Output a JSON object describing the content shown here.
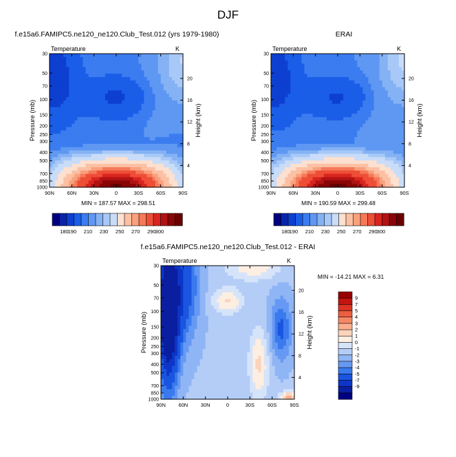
{
  "figure": {
    "title": "DJF",
    "panel_titles": [
      "f.e15a6.FAMIPC5.ne120_ne120.Club_Test.012 (yrs 1979-1980)",
      "ERAI",
      "f.e15a6.FAMIPC5.ne120_ne120.Club_Test.012 - ERAI"
    ],
    "field_label": "Temperature",
    "units": "K",
    "stats": [
      "MIN = 187.57  MAX = 298.51",
      "MIN = 190.59  MAX = 299.48",
      "MIN = -14.21  MAX =   6.31"
    ]
  },
  "colors": {
    "full_levels": [
      "#000080",
      "#0a24a8",
      "#0d3fd0",
      "#1a5ee8",
      "#3b7cf0",
      "#5e98f2",
      "#85b2f4",
      "#a8c9f8",
      "#c9dcf8",
      "#fde0cf",
      "#fcc0a4",
      "#f9a07c",
      "#f5795a",
      "#ee4e36",
      "#d9241f",
      "#b01313",
      "#8a0505",
      "#6a0000"
    ],
    "diff_levels": [
      "#000080",
      "#0a1ea0",
      "#0d36c8",
      "#1a55e0",
      "#3a7aee",
      "#6699f3",
      "#8fb5f5",
      "#b4cdf7",
      "#d6e4fa",
      "#fdeee2",
      "#fcd3bb",
      "#faae8d",
      "#f48864",
      "#ec5e3f",
      "#dc3323",
      "#c21510",
      "#990000"
    ]
  },
  "chart_data": [
    {
      "type": "heatmap",
      "title": "f.e15a6.FAMIPC5.ne120_ne120.Club_Test.012 (yrs 1979-1980)",
      "ylabel": "Pressure (mb)",
      "y2label": "Height (km)",
      "x_ticks": [
        "90N",
        "60N",
        "30N",
        "0",
        "30S",
        "60S",
        "90S"
      ],
      "y_ticks": [
        30,
        50,
        70,
        100,
        150,
        200,
        250,
        300,
        400,
        500,
        700,
        850,
        1000
      ],
      "y2_ticks": [
        20,
        16,
        12,
        8,
        4
      ],
      "ylim": [
        30,
        1000
      ],
      "min": 187.57,
      "max": 298.51,
      "colorbar_labels": [
        "180",
        "190",
        "210",
        "230",
        "250",
        "270",
        "290",
        "300"
      ]
    },
    {
      "type": "heatmap",
      "title": "ERAI",
      "ylabel": "Pressure (mb)",
      "y2label": "Height (km)",
      "x_ticks": [
        "90N",
        "60N",
        "30N",
        "0",
        "30S",
        "60S",
        "90S"
      ],
      "y_ticks": [
        30,
        50,
        70,
        100,
        150,
        200,
        250,
        300,
        400,
        500,
        700,
        850,
        1000
      ],
      "y2_ticks": [
        20,
        16,
        12,
        8,
        4
      ],
      "ylim": [
        30,
        1000
      ],
      "min": 190.59,
      "max": 299.48,
      "colorbar_labels": [
        "180",
        "190",
        "210",
        "230",
        "250",
        "270",
        "290",
        "300"
      ]
    },
    {
      "type": "heatmap",
      "title": "f.e15a6.FAMIPC5.ne120_ne120.Club_Test.012 - ERAI",
      "ylabel": "Pressure (mb)",
      "y2label": "Height (km)",
      "x_ticks": [
        "90N",
        "60N",
        "30N",
        "0",
        "30S",
        "60S",
        "90S"
      ],
      "y_ticks": [
        30,
        50,
        70,
        100,
        150,
        200,
        250,
        300,
        400,
        500,
        700,
        850,
        1000
      ],
      "y2_ticks": [
        20,
        16,
        12,
        8,
        4
      ],
      "ylim": [
        30,
        1000
      ],
      "min": -14.21,
      "max": 6.31,
      "colorbar_labels": [
        "9",
        "7",
        "5",
        "4",
        "3",
        "2",
        "1",
        "0",
        "-1",
        "-2",
        "-3",
        "-4",
        "-5",
        "-7",
        "-9"
      ]
    }
  ]
}
